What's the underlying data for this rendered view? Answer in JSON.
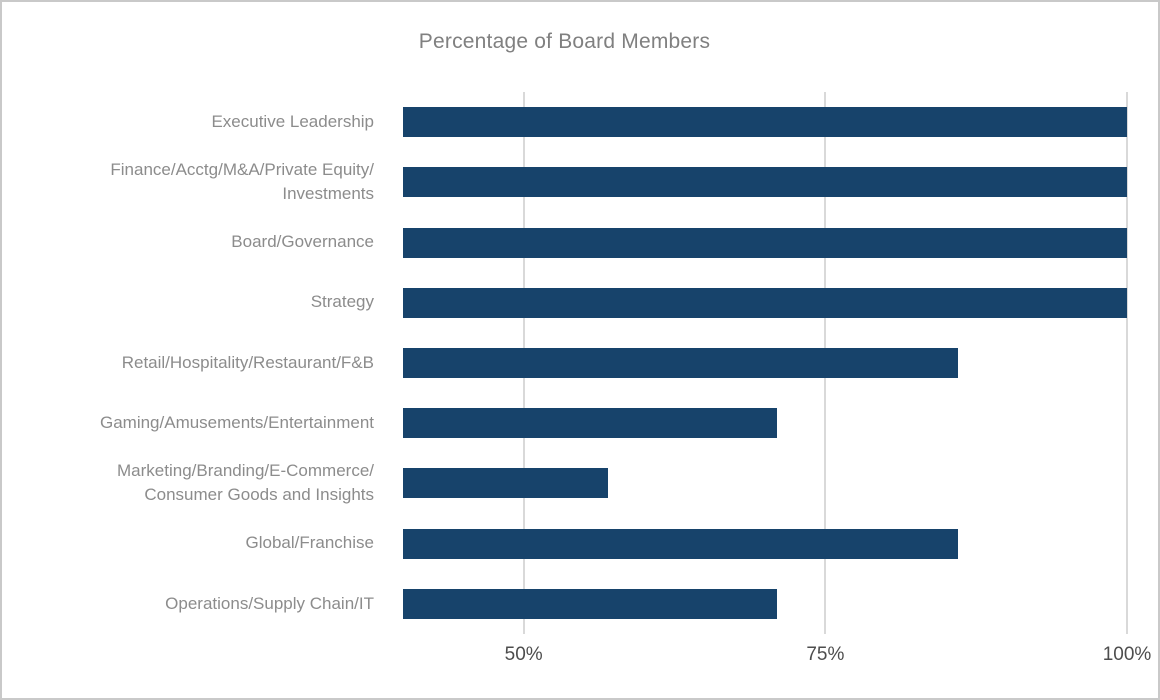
{
  "page": {
    "frame_border_color": "#c9c9c9",
    "background_color": "#ffffff"
  },
  "chart_data": {
    "type": "bar",
    "orientation": "horizontal",
    "title": "Percentage of Board Members",
    "categories": [
      "Executive Leadership",
      "Finance/Acctg/M&A/Private Equity/\nInvestments",
      "Board/Governance",
      "Strategy",
      "Retail/Hospitality/Restaurant/F&B",
      "Gaming/Amusements/Entertainment",
      "Marketing/Branding/E-Commerce/\nConsumer Goods and Insights",
      "Global/Franchise",
      "Operations/Supply Chain/IT"
    ],
    "values": [
      100,
      100,
      100,
      100,
      86,
      71,
      57,
      86,
      71
    ],
    "value_unit": "%",
    "xlim": [
      40,
      100
    ],
    "x_ticks": [
      {
        "value": 50,
        "label": "50%"
      },
      {
        "value": 75,
        "label": "75%"
      },
      {
        "value": 100,
        "label": "100%"
      }
    ],
    "xlabel": "",
    "ylabel": "",
    "legend": "none",
    "grid": "vertical-only",
    "bar_color": "#17436b",
    "title_color": "#808080",
    "category_label_color": "#8c8c8c",
    "tick_label_color": "#4d4d4d",
    "gridline_color": "#d9d9d9"
  }
}
